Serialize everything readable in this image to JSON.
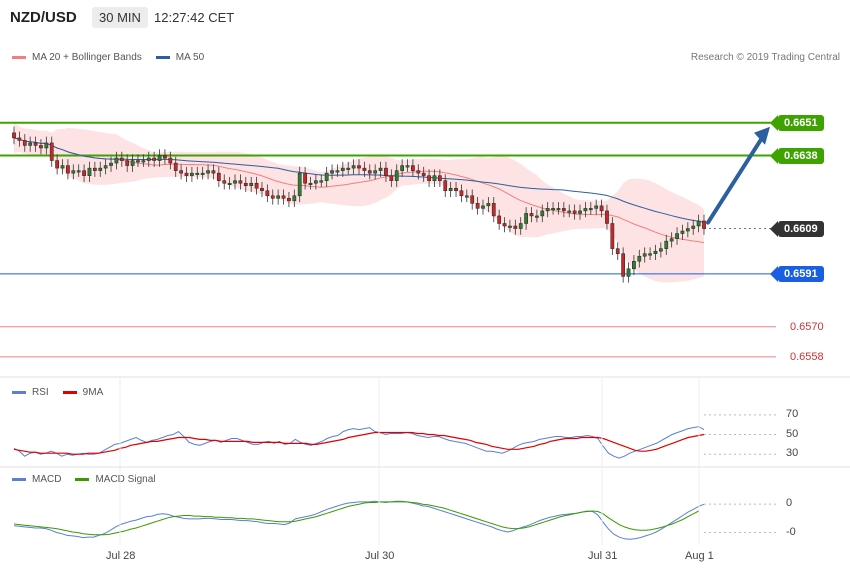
{
  "header": {
    "pair": "NZD/USD",
    "timeframe": "30 MIN",
    "time": "12:27:42 CET"
  },
  "credit": "Research © 2019 Trading Central",
  "colors": {
    "up": "#2e7d32",
    "down": "#c62828",
    "ma20": "#f08080",
    "ma50": "#2c5f9e",
    "resistance": "#3ea200",
    "pivot": "#1a5fe0",
    "support": "#f08080",
    "current": "#333333",
    "rsi": "#5b7fd6",
    "rsi9ma": "#e00000",
    "macd": "#5b7fd6",
    "macdSignal": "#3a9a00",
    "arrow": "#2c5f9e"
  },
  "chart_data": [
    {
      "type": "candlestick",
      "legend": [
        {
          "label": "MA 20 + Bollinger Bands"
        },
        {
          "label": "MA 50"
        }
      ],
      "x_labels": [
        "Jul 28",
        "Jul 30",
        "Jul 31",
        "Aug 1"
      ],
      "ylim": [
        0.6552,
        0.6668
      ],
      "levels": [
        {
          "value": 0.6651,
          "label": "0.6651",
          "kind": "resistance"
        },
        {
          "value": 0.6638,
          "label": "0.6638",
          "kind": "resistance"
        },
        {
          "value": 0.6609,
          "label": "0.6609",
          "kind": "current"
        },
        {
          "value": 0.6591,
          "label": "0.6591",
          "kind": "pivot"
        },
        {
          "value": 0.657,
          "label": "0.6570",
          "kind": "support"
        },
        {
          "value": 0.6558,
          "label": "0.6558",
          "kind": "support"
        }
      ],
      "closes": [
        0.6645,
        0.6644,
        0.6642,
        0.6643,
        0.6642,
        0.6641,
        0.6643,
        0.6636,
        0.6633,
        0.6634,
        0.6631,
        0.6632,
        0.6632,
        0.663,
        0.6633,
        0.6632,
        0.6633,
        0.6634,
        0.6635,
        0.6637,
        0.6636,
        0.6634,
        0.6636,
        0.6636,
        0.6636,
        0.6637,
        0.6636,
        0.6638,
        0.6637,
        0.6635,
        0.6632,
        0.6631,
        0.663,
        0.6631,
        0.6631,
        0.6631,
        0.6632,
        0.6631,
        0.6628,
        0.6627,
        0.6627,
        0.6628,
        0.6627,
        0.6626,
        0.6627,
        0.6625,
        0.6624,
        0.6622,
        0.6621,
        0.6622,
        0.6621,
        0.662,
        0.6622,
        0.6631,
        0.6627,
        0.6627,
        0.6628,
        0.6628,
        0.6631,
        0.6632,
        0.6632,
        0.6633,
        0.6633,
        0.6634,
        0.6633,
        0.6632,
        0.6631,
        0.6632,
        0.6633,
        0.663,
        0.6628,
        0.6632,
        0.6634,
        0.6634,
        0.6632,
        0.6631,
        0.663,
        0.6628,
        0.663,
        0.6628,
        0.6624,
        0.6625,
        0.6624,
        0.6622,
        0.6622,
        0.6619,
        0.6617,
        0.6618,
        0.6619,
        0.6614,
        0.6611,
        0.661,
        0.661,
        0.6609,
        0.6611,
        0.6615,
        0.6614,
        0.6614,
        0.6616,
        0.6617,
        0.6617,
        0.6617,
        0.6616,
        0.6616,
        0.6615,
        0.6616,
        0.6617,
        0.6617,
        0.6618,
        0.6616,
        0.6611,
        0.6601,
        0.6599,
        0.659,
        0.6593,
        0.6596,
        0.6598,
        0.6599,
        0.6599,
        0.66,
        0.6601,
        0.6604,
        0.6605,
        0.6607,
        0.6608,
        0.6609,
        0.661,
        0.6612,
        0.6609
      ]
    },
    {
      "type": "line",
      "legend": [
        {
          "label": "RSI"
        },
        {
          "label": "9MA"
        }
      ],
      "yticks": [
        70,
        50,
        30
      ],
      "ylim": [
        18,
        80
      ],
      "rsi": [
        36,
        33,
        28,
        31,
        32,
        30,
        31,
        33,
        31,
        28,
        30,
        29,
        30,
        31,
        30,
        30,
        31,
        34,
        37,
        40,
        41,
        43,
        45,
        47,
        44,
        42,
        44,
        45,
        47,
        49,
        50,
        53,
        48,
        42,
        40,
        39,
        41,
        43,
        44,
        42,
        44,
        46,
        46,
        44,
        42,
        40,
        40,
        42,
        43,
        41,
        43,
        40,
        41,
        45,
        42,
        40,
        39,
        41,
        43,
        46,
        48,
        49,
        53,
        55,
        56,
        55,
        56,
        57,
        53,
        52,
        50,
        51,
        51,
        51,
        52,
        51,
        49,
        48,
        47,
        48,
        48,
        46,
        44,
        43,
        42,
        41,
        39,
        37,
        35,
        33,
        33,
        32,
        31,
        33,
        36,
        39,
        41,
        42,
        43,
        45,
        46,
        47,
        48,
        48,
        47,
        47,
        48,
        48,
        49,
        48,
        46,
        38,
        31,
        28,
        26,
        28,
        31,
        33,
        35,
        37,
        39,
        41,
        44,
        47,
        50,
        52,
        54,
        56,
        57,
        58,
        55
      ],
      "ma9": [
        35,
        34,
        33,
        32,
        32,
        31,
        31,
        31,
        31,
        31,
        31,
        30,
        30,
        30,
        31,
        31,
        31,
        32,
        33,
        34,
        36,
        37,
        39,
        40,
        41,
        42,
        43,
        43,
        44,
        45,
        46,
        47,
        47,
        47,
        46,
        45,
        45,
        44,
        44,
        43,
        43,
        43,
        43,
        43,
        43,
        42,
        42,
        42,
        42,
        42,
        42,
        41,
        41,
        41,
        41,
        41,
        40,
        40,
        41,
        42,
        43,
        44,
        45,
        47,
        48,
        49,
        50,
        51,
        52,
        52,
        52,
        52,
        52,
        52,
        52,
        52,
        51,
        51,
        50,
        50,
        49,
        49,
        48,
        47,
        46,
        45,
        44,
        42,
        41,
        40,
        38,
        37,
        36,
        35,
        35,
        35,
        36,
        37,
        38,
        40,
        41,
        43,
        44,
        45,
        46,
        46,
        46,
        47,
        47,
        47,
        47,
        46,
        44,
        42,
        40,
        38,
        36,
        34,
        33,
        33,
        34,
        35,
        37,
        39,
        41,
        43,
        45,
        47,
        48,
        49,
        50
      ]
    },
    {
      "type": "line",
      "legend": [
        {
          "label": "MACD"
        },
        {
          "label": "MACD Signal"
        }
      ],
      "yticks": [
        0,
        -0.0005
      ],
      "ytick_labels": [
        "0",
        "-0"
      ],
      "ylim": [
        -0.00072,
        0.00025
      ],
      "macd": [
        -0.00038,
        -0.00039,
        -0.0004,
        -0.00041,
        -0.00042,
        -0.00042,
        -0.00043,
        -0.00046,
        -0.0005,
        -0.00052,
        -0.00055,
        -0.00056,
        -0.00057,
        -0.00059,
        -0.00058,
        -0.00058,
        -0.00055,
        -0.00052,
        -0.00047,
        -0.00041,
        -0.00036,
        -0.00033,
        -0.0003,
        -0.00028,
        -0.00025,
        -0.00022,
        -0.00021,
        -0.00018,
        -0.00017,
        -0.00018,
        -0.00021,
        -0.00023,
        -0.00025,
        -0.00026,
        -0.00026,
        -0.00026,
        -0.00025,
        -0.00025,
        -0.00026,
        -0.00027,
        -0.00027,
        -0.00027,
        -0.00028,
        -0.00029,
        -0.00029,
        -0.0003,
        -0.00031,
        -0.00033,
        -0.00034,
        -0.00034,
        -0.00035,
        -0.00036,
        -0.00033,
        -0.00026,
        -0.00024,
        -0.00022,
        -0.0002,
        -0.00017,
        -0.00013,
        -9e-05,
        -6e-05,
        -3e-05,
        0,
        2e-05,
        3e-05,
        4e-05,
        4e-05,
        4e-05,
        5e-05,
        4e-05,
        3e-05,
        4e-05,
        5e-05,
        5e-05,
        4e-05,
        2e-05,
        0,
        -3e-05,
        -4e-05,
        -7e-05,
        -0.0001,
        -0.00013,
        -0.00016,
        -0.00019,
        -0.00022,
        -0.00025,
        -0.00028,
        -0.00031,
        -0.00034,
        -0.00037,
        -0.0004,
        -0.00044,
        -0.00047,
        -0.00049,
        -0.00047,
        -0.00043,
        -0.0004,
        -0.00037,
        -0.00033,
        -0.00029,
        -0.00026,
        -0.00023,
        -0.00021,
        -0.00019,
        -0.00018,
        -0.00017,
        -0.00016,
        -0.00014,
        -0.00012,
        -0.00013,
        -0.00019,
        -0.00032,
        -0.00044,
        -0.00053,
        -0.00058,
        -0.00061,
        -0.00062,
        -0.00061,
        -0.00059,
        -0.00056,
        -0.00053,
        -0.00049,
        -0.00044,
        -0.00038,
        -0.00032,
        -0.00026,
        -0.0002,
        -0.00014,
        -9e-05,
        -4e-05,
        0
      ],
      "signal": [
        -0.00035,
        -0.00036,
        -0.00037,
        -0.00038,
        -0.00039,
        -0.0004,
        -0.00041,
        -0.00042,
        -0.00043,
        -0.00045,
        -0.00047,
        -0.00049,
        -0.0005,
        -0.00052,
        -0.00053,
        -0.00054,
        -0.00054,
        -0.00054,
        -0.00053,
        -0.00051,
        -0.00049,
        -0.00047,
        -0.00044,
        -0.00042,
        -0.00039,
        -0.00036,
        -0.00033,
        -0.0003,
        -0.00027,
        -0.00024,
        -0.00022,
        -0.00021,
        -0.0002,
        -0.0002,
        -0.00021,
        -0.00021,
        -0.00022,
        -0.00022,
        -0.00023,
        -0.00023,
        -0.00024,
        -0.00024,
        -0.00025,
        -0.00025,
        -0.00026,
        -0.00026,
        -0.00027,
        -0.00028,
        -0.00029,
        -0.0003,
        -0.00031,
        -0.00031,
        -0.00031,
        -0.0003,
        -0.00028,
        -0.00026,
        -0.00024,
        -0.00022,
        -0.00019,
        -0.00016,
        -0.00013,
        -0.0001,
        -7e-05,
        -4e-05,
        -2e-05,
        0,
        2e-05,
        3e-05,
        3e-05,
        4e-05,
        4e-05,
        4e-05,
        4e-05,
        4e-05,
        4e-05,
        3e-05,
        2e-05,
        0,
        -1e-05,
        -3e-05,
        -5e-05,
        -7e-05,
        -0.0001,
        -0.00013,
        -0.00016,
        -0.00019,
        -0.00022,
        -0.00025,
        -0.00028,
        -0.00031,
        -0.00034,
        -0.00037,
        -0.0004,
        -0.00042,
        -0.00043,
        -0.00043,
        -0.00042,
        -0.0004,
        -0.00037,
        -0.00034,
        -0.00031,
        -0.00028,
        -0.00025,
        -0.00022,
        -0.0002,
        -0.00018,
        -0.00016,
        -0.00014,
        -0.00013,
        -0.00012,
        -0.00013,
        -0.00017,
        -0.00024,
        -0.0003,
        -0.00036,
        -0.0004,
        -0.00043,
        -0.00045,
        -0.00046,
        -0.00046,
        -0.00045,
        -0.00043,
        -0.00041,
        -0.00038,
        -0.00035,
        -0.00031,
        -0.00027,
        -0.00022,
        -0.00017,
        -0.00012
      ]
    }
  ]
}
